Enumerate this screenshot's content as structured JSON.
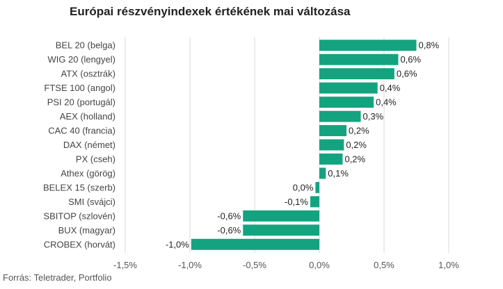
{
  "chart_data": {
    "type": "bar",
    "orientation": "horizontal",
    "title": "Európai részvényindexek értékének mai változása",
    "source": "Forrás: Teletrader, Portfolio",
    "categories": [
      "BEL 20 (belga)",
      "WIG 20 (lengyel)",
      "ATX (osztrák)",
      "FTSE 100 (angol)",
      "PSI 20 (portugál)",
      "AEX (holland)",
      "CAC 40 (francia)",
      "DAX (német)",
      "PX (cseh)",
      "Athex (görög)",
      "BELEX 15 (szerb)",
      "SMI (svájci)",
      "SBITOP (szlovén)",
      "BUX (magyar)",
      "CROBEX (horvát)"
    ],
    "values": [
      0.75,
      0.61,
      0.58,
      0.45,
      0.42,
      0.32,
      0.21,
      0.19,
      0.18,
      0.05,
      -0.03,
      -0.07,
      -0.59,
      -0.59,
      -0.99
    ],
    "value_labels": [
      "0,8%",
      "0,6%",
      "0,6%",
      "0,4%",
      "0,4%",
      "0,3%",
      "0,2%",
      "0,2%",
      "0,2%",
      "0,1%",
      "0,0%",
      "-0,1%",
      "-0,6%",
      "-0,6%",
      "-1,0%"
    ],
    "xlim": [
      -1.5,
      1.0
    ],
    "xticks": [
      -1.5,
      -1.0,
      -0.5,
      0.0,
      0.5,
      1.0
    ],
    "xtick_labels": [
      "-1,5%",
      "-1,0%",
      "-0,5%",
      "0,0%",
      "0,5%",
      "1,0%"
    ],
    "grid": true,
    "legend": "none",
    "bar_color": "#14a37f"
  }
}
